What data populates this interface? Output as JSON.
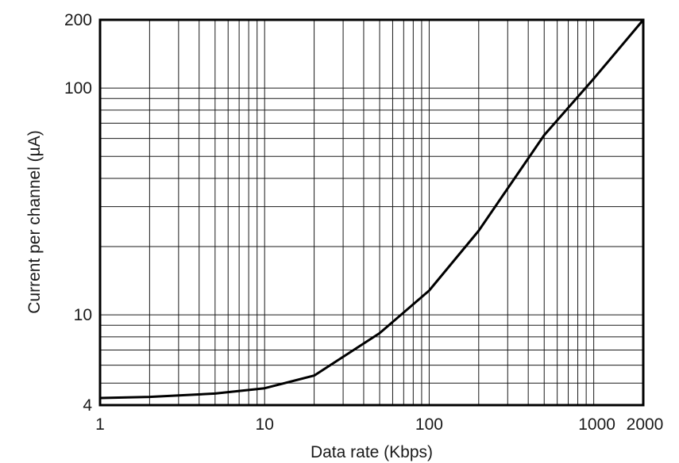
{
  "chart_data": {
    "type": "line",
    "xlabel": "Data  rate (Kbps)",
    "ylabel": "Current per channel (µA)",
    "x_scale": "log",
    "y_scale": "log",
    "xlim": [
      1,
      2000
    ],
    "ylim": [
      4,
      200
    ],
    "grid": true,
    "x_ticks": [
      1,
      10,
      100,
      1000,
      2000
    ],
    "x_tick_labels": [
      "1",
      "10",
      "100",
      "1000",
      "2000"
    ],
    "y_ticks": [
      4,
      10,
      100,
      200
    ],
    "y_tick_labels": [
      "4",
      "10",
      "100",
      "200"
    ],
    "line_color": "#000000",
    "series": [
      {
        "x": [
          1,
          2,
          5,
          10,
          20,
          50,
          100,
          200,
          500,
          1000,
          2000
        ],
        "y": [
          4.3,
          4.35,
          4.5,
          4.75,
          5.4,
          8.3,
          12.8,
          23.5,
          62,
          110,
          200
        ]
      }
    ]
  }
}
